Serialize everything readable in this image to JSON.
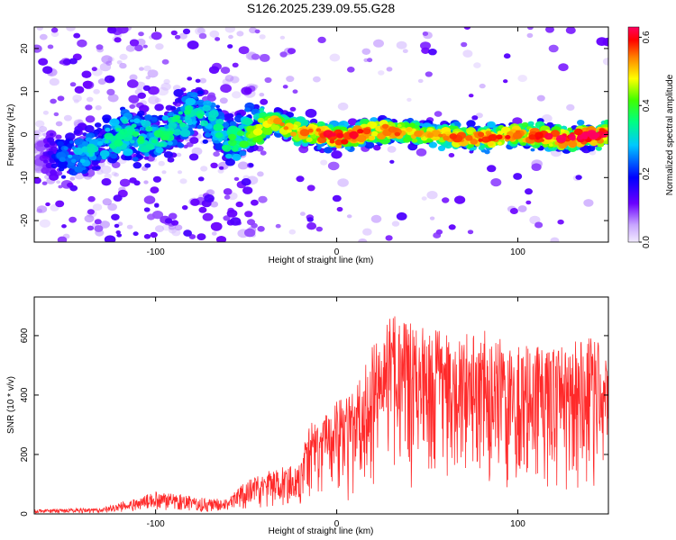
{
  "figure_title": "S126.2025.239.09.55.G28",
  "colors": {
    "snr_line": "#ff2a2a",
    "colormap": [
      "#d9c2ff",
      "#7a00ff",
      "#0000ff",
      "#00ffff",
      "#00ff00",
      "#ffff00",
      "#ff8000",
      "#ff0000",
      "#ff0055"
    ]
  },
  "chart_data": [
    {
      "type": "heatmap",
      "xlabel": "Height of straight line (km)",
      "ylabel": "Frequency (Hz)",
      "xlim": [
        -167,
        150
      ],
      "ylim": [
        -25,
        25
      ],
      "x_ticks": [
        -100,
        0,
        100
      ],
      "x_tick_labels": [
        "-100",
        "0",
        "100"
      ],
      "y_ticks": [
        -20,
        -10,
        0,
        10,
        20
      ],
      "y_tick_labels": [
        "-20",
        "-10",
        "0",
        "10",
        "20"
      ],
      "colorbar": {
        "label": "Normalized spectral amplitude",
        "range": [
          0,
          0.63
        ],
        "ticks": [
          0,
          0.2,
          0.4,
          0.6
        ],
        "tick_labels": [
          "0.0",
          "0.2",
          "0.4",
          "0.6"
        ]
      },
      "ridge": {
        "x": [
          -167,
          -150,
          -135,
          -120,
          -100,
          -80,
          -70,
          -60,
          -50,
          -35,
          -25,
          -10,
          0,
          25,
          50,
          75,
          100,
          125,
          150
        ],
        "center_hz": [
          -4,
          -5,
          -4,
          0,
          -1,
          5,
          4,
          -2,
          0,
          3,
          1,
          0,
          -1,
          1,
          0,
          -1,
          0,
          -1,
          0
        ],
        "peak_amplitude": [
          0.05,
          0.25,
          0.3,
          0.35,
          0.35,
          0.35,
          0.3,
          0.35,
          0.4,
          0.5,
          0.5,
          0.55,
          0.6,
          0.55,
          0.5,
          0.55,
          0.55,
          0.6,
          0.63
        ]
      }
    },
    {
      "type": "line",
      "xlabel": "Height of straight line (km)",
      "ylabel": "SNR (10 * v/v)",
      "xlim": [
        -167,
        150
      ],
      "ylim": [
        0,
        730
      ],
      "x_ticks": [
        -100,
        0,
        100
      ],
      "x_tick_labels": [
        "-100",
        "0",
        "100"
      ],
      "y_ticks": [
        0,
        200,
        400,
        600
      ],
      "y_tick_labels": [
        "0",
        "200",
        "400",
        "600"
      ],
      "series": [
        {
          "name": "SNR",
          "x": [
            -167,
            -130,
            -110,
            -100,
            -90,
            -80,
            -70,
            -60,
            -50,
            -40,
            -30,
            -20,
            -15,
            -10,
            0,
            10,
            20,
            30,
            40,
            60,
            80,
            100,
            120,
            140,
            150
          ],
          "y": [
            15,
            20,
            55,
            75,
            70,
            60,
            50,
            55,
            110,
            140,
            160,
            170,
            330,
            300,
            380,
            420,
            600,
            680,
            650,
            610,
            620,
            580,
            560,
            600,
            550
          ],
          "note": "y = approximate envelope maximum"
        }
      ]
    }
  ]
}
